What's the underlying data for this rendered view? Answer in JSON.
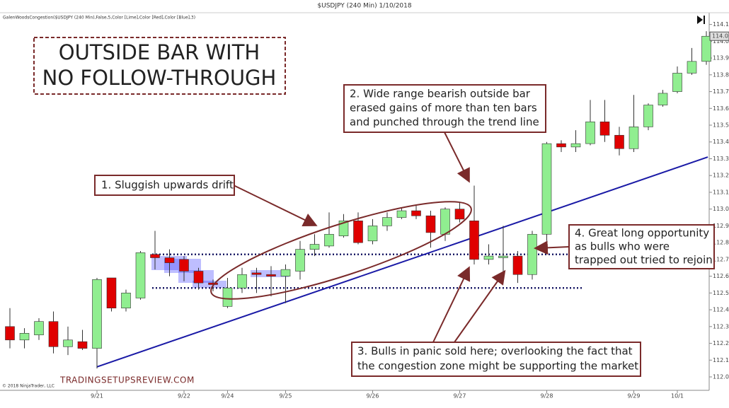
{
  "chart_data": {
    "type": "candlestick",
    "title": "$USDJPY (240 Min)  1/10/2018",
    "indicator_label": "GalenWoodsCongestion($USDJPY (240 Min),False,5,Color [Lime],Color [Red],Color [Blue],3)",
    "copyright": "© 2018 NinjaTrader, LLC",
    "watermark": "TRADINGSETUPSREVIEW.COM",
    "headline": [
      "OUTSIDE BAR WITH",
      "NO FOLLOW-THROUGH"
    ],
    "annotations": [
      [
        "1. Sluggish upwards drift"
      ],
      [
        "2. Wide range bearish outside bar",
        "erased gains of more than ten bars",
        "and punched through the trend line"
      ],
      [
        "3. Bulls in panic sold here; overlooking the fact that",
        "the congestion zone might be supporting the market"
      ],
      [
        "4. Great long opportunity",
        "as bulls who were",
        "trapped out tried to rejoin"
      ]
    ],
    "categories": [
      null,
      null,
      null,
      null,
      null,
      null,
      "9/21",
      null,
      null,
      null,
      null,
      null,
      "9/22",
      null,
      null,
      "9/24",
      null,
      null,
      null,
      "9/25",
      null,
      null,
      null,
      null,
      null,
      "9/26",
      null,
      null,
      null,
      null,
      null,
      "9/27",
      null,
      null,
      null,
      null,
      null,
      "9/28",
      null,
      null,
      null,
      null,
      null,
      "9/29",
      null,
      null,
      "10/1",
      null,
      null
    ],
    "open": [
      112.3,
      112.22,
      112.25,
      112.33,
      112.18,
      112.21,
      112.17,
      112.59,
      112.41,
      112.47,
      112.73,
      112.71,
      112.7,
      112.63,
      112.56,
      112.42,
      112.53,
      112.62,
      112.61,
      112.6,
      112.63,
      112.76,
      112.78,
      112.84,
      112.93,
      112.81,
      112.9,
      112.95,
      112.99,
      112.96,
      112.85,
      113.0,
      112.93,
      112.7,
      112.71,
      112.72,
      112.61,
      112.85,
      113.39,
      113.37,
      113.39,
      113.52,
      113.44,
      113.36,
      113.49,
      113.62,
      113.7,
      113.81,
      113.88
    ],
    "high": [
      112.41,
      112.29,
      112.35,
      112.39,
      112.3,
      112.28,
      112.59,
      112.59,
      112.52,
      112.75,
      112.87,
      112.76,
      112.72,
      112.65,
      112.58,
      112.59,
      112.65,
      112.65,
      112.66,
      112.67,
      112.81,
      112.85,
      112.98,
      112.97,
      112.98,
      112.94,
      112.98,
      113.01,
      113.02,
      112.99,
      113.01,
      113.04,
      113.14,
      112.79,
      112.9,
      112.75,
      112.87,
      113.4,
      113.41,
      113.47,
      113.65,
      113.65,
      113.49,
      113.68,
      113.63,
      113.71,
      113.85,
      113.96,
      114.06
    ],
    "low": [
      112.17,
      112.17,
      112.22,
      112.14,
      112.13,
      112.16,
      112.05,
      112.39,
      112.39,
      112.46,
      112.64,
      112.6,
      112.57,
      112.52,
      112.51,
      112.41,
      112.5,
      112.5,
      112.48,
      112.44,
      112.58,
      112.72,
      112.77,
      112.83,
      112.79,
      112.79,
      112.87,
      112.94,
      112.94,
      112.77,
      112.81,
      112.92,
      112.67,
      112.67,
      112.62,
      112.56,
      112.58,
      112.81,
      113.34,
      113.34,
      113.38,
      113.4,
      113.32,
      113.34,
      113.47,
      113.61,
      113.69,
      113.8,
      113.86
    ],
    "close": [
      112.22,
      112.26,
      112.33,
      112.18,
      112.22,
      112.17,
      112.58,
      112.41,
      112.5,
      112.74,
      112.71,
      112.68,
      112.63,
      112.56,
      112.55,
      112.53,
      112.61,
      112.61,
      112.6,
      112.64,
      112.76,
      112.79,
      112.85,
      112.93,
      112.8,
      112.9,
      112.95,
      112.99,
      112.96,
      112.86,
      113.0,
      112.94,
      112.7,
      112.72,
      112.72,
      112.61,
      112.85,
      113.39,
      113.37,
      113.39,
      113.52,
      113.44,
      113.36,
      113.49,
      113.62,
      113.69,
      113.81,
      113.88,
      114.03
    ],
    "up_color": "#90ee90",
    "down_color": "#e00000",
    "last_price": 114.03,
    "congestion_levels": [
      112.73,
      112.53
    ],
    "trendline": {
      "color": "#1a1aa6",
      "x": [
        6,
        48.1
      ],
      "values": [
        112.06,
        113.31
      ]
    },
    "ylim": [
      111.92,
      114.17
    ],
    "yticks": [
      {
        "value": 114.1,
        "label": "114.10"
      },
      {
        "value": 114.0,
        "label": "114.00"
      },
      {
        "value": 113.9,
        "label": "113.90"
      },
      {
        "value": 113.8,
        "label": "113.80"
      },
      {
        "value": 113.7,
        "label": "113.70"
      },
      {
        "value": 113.6,
        "label": "113.60"
      },
      {
        "value": 113.5,
        "label": "113.50"
      },
      {
        "value": 113.4,
        "label": "113.40"
      },
      {
        "value": 113.3,
        "label": "113.30"
      },
      {
        "value": 113.2,
        "label": "113.20"
      },
      {
        "value": 113.1,
        "label": "113.10"
      },
      {
        "value": 113.0,
        "label": "113.00"
      },
      {
        "value": 112.9,
        "label": "112.90"
      },
      {
        "value": 112.8,
        "label": "112.80"
      },
      {
        "value": 112.7,
        "label": "112.70"
      },
      {
        "value": 112.6,
        "label": "112.60"
      },
      {
        "value": 112.5,
        "label": "112.50"
      },
      {
        "value": 112.4,
        "label": "112.40"
      },
      {
        "value": 112.3,
        "label": "112.30"
      },
      {
        "value": 112.2,
        "label": "112.20"
      },
      {
        "value": 112.1,
        "label": "112.10"
      },
      {
        "value": 112.0,
        "label": "112.00"
      }
    ]
  }
}
